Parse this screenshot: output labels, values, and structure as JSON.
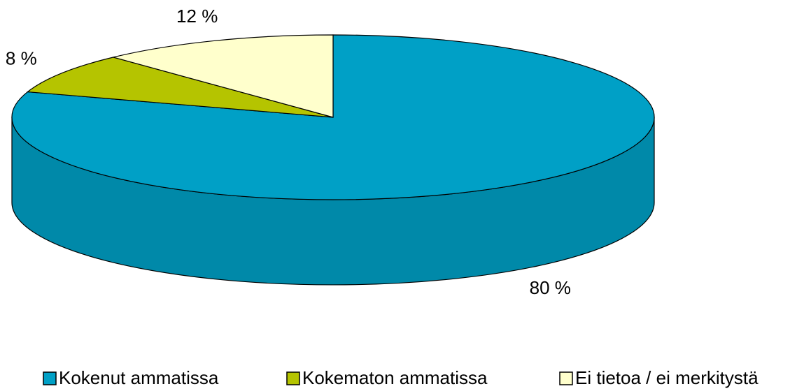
{
  "chart_data": {
    "type": "pie3d",
    "categories": [
      "Kokenut ammatissa",
      "Kokematon ammatissa",
      "Ei tietoa / ei merkitystä"
    ],
    "values": [
      80,
      8,
      12
    ],
    "value_labels": [
      "80 %",
      "8 %",
      "12 %"
    ],
    "colors": [
      "#00a0c6",
      "#b5c400",
      "#ffffcc"
    ],
    "side_colors": [
      "#0089a9",
      "#98a500",
      "#d9d9ad"
    ],
    "legend": "bottom"
  }
}
